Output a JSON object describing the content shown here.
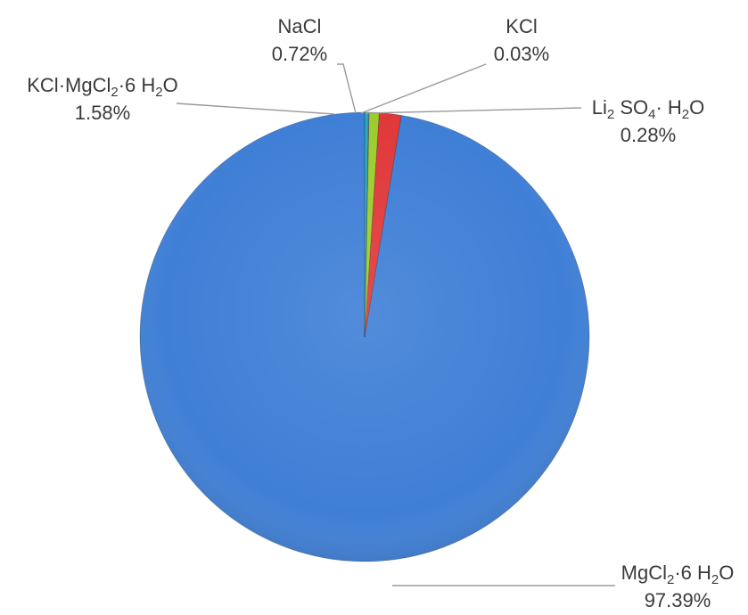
{
  "chart_data": {
    "type": "pie",
    "slices": [
      {
        "label": "MgCl2·6 H2O",
        "label_parts": [
          [
            "MgCl",
            ""
          ],
          [
            "2",
            "sub"
          ],
          [
            "·6 H",
            ""
          ],
          [
            "2",
            "sub"
          ],
          [
            "O",
            ""
          ]
        ],
        "value_text": "97.39%",
        "value": 97.39,
        "color": "#3f7fd6"
      },
      {
        "label": "KCl·MgCl2·6 H2O",
        "label_parts": [
          [
            "KCl·MgCl",
            ""
          ],
          [
            "2",
            "sub"
          ],
          [
            "·6 H",
            ""
          ],
          [
            "2",
            "sub"
          ],
          [
            "O",
            ""
          ]
        ],
        "value_text": "1.58%",
        "value": 1.58,
        "color": "#e0383a"
      },
      {
        "label": "NaCl",
        "label_parts": [
          [
            "NaCl",
            ""
          ]
        ],
        "value_text": "0.72%",
        "value": 0.72,
        "color": "#9ccd2e"
      },
      {
        "label": "KCl",
        "label_parts": [
          [
            "KCl",
            ""
          ]
        ],
        "value_text": "0.03%",
        "value": 0.03,
        "color": "#7a5ab8"
      },
      {
        "label": "Li2 SO4· H2O",
        "label_parts": [
          [
            "Li",
            ""
          ],
          [
            "2",
            "sub"
          ],
          [
            " SO",
            ""
          ],
          [
            "4",
            "sub"
          ],
          [
            "· H",
            ""
          ],
          [
            "2",
            "sub"
          ],
          [
            "O",
            ""
          ]
        ],
        "value_text": "0.28%",
        "value": 0.28,
        "color": "#2aa6b8"
      }
    ],
    "start_angle_deg": 0,
    "direction": "counterclockwise",
    "legend": "none",
    "data_labels": "outside with leader lines"
  }
}
